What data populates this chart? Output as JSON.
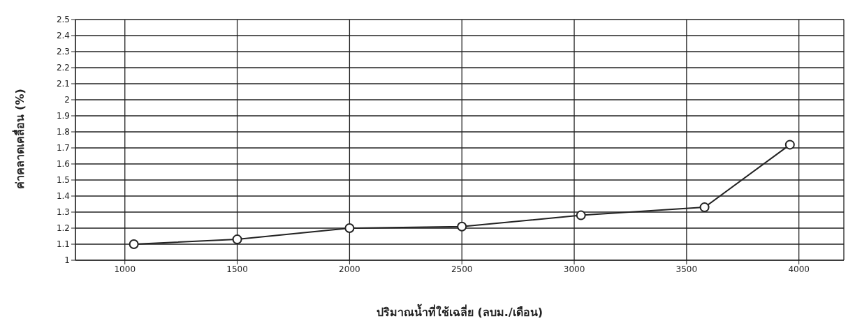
{
  "chart_data": {
    "type": "line",
    "xlabel": "ปริมาณน้ำที่ใช้เฉลี่ย (ลบม./เดือน)",
    "ylabel": "ค่าคลาดเคลื่อน (%)",
    "x": [
      1040,
      1500,
      2000,
      2500,
      3030,
      3580,
      3960
    ],
    "series": [
      {
        "color": "#222222",
        "values": [
          1.1,
          1.13,
          1.2,
          1.21,
          1.28,
          1.33,
          1.72
        ]
      }
    ],
    "xlim": [
      780,
      4200
    ],
    "xticks": [
      1000,
      1500,
      2000,
      2500,
      3000,
      3500,
      4000
    ],
    "ylim": [
      1,
      2.5
    ],
    "yticks": [
      1,
      1.1,
      1.2,
      1.3,
      1.4,
      1.5,
      1.6,
      1.7,
      1.8,
      1.9,
      2,
      2.1,
      2.2,
      2.3,
      2.4,
      2.5
    ],
    "grid": true,
    "marker": "circle",
    "line_style": "solid",
    "legend": false
  }
}
